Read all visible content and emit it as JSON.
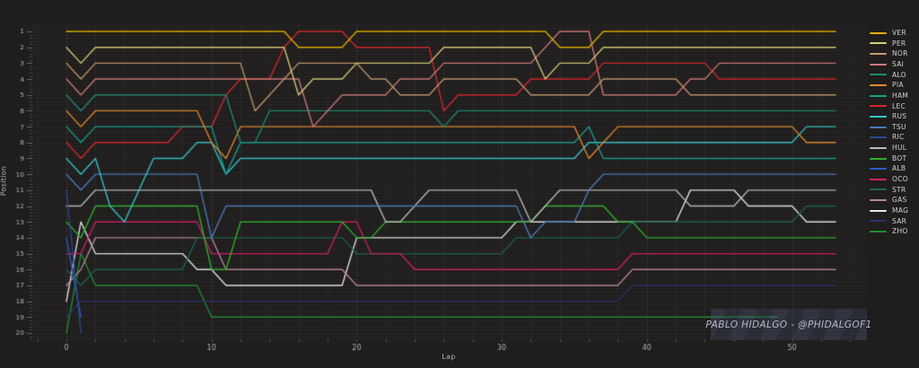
{
  "watermark": {
    "text": "PABLO HIDALGO - @PHIDALGOF1"
  },
  "axes": {
    "x_label": "Lap",
    "y_label": "Position",
    "x_ticks": [
      0,
      10,
      20,
      30,
      40,
      50
    ],
    "y_ticks": [
      1,
      2,
      3,
      4,
      5,
      6,
      7,
      8,
      9,
      10,
      11,
      12,
      13,
      14,
      15,
      16,
      17,
      18,
      19,
      20
    ]
  },
  "chart_data": {
    "type": "line",
    "title": "",
    "xlabel": "Lap",
    "ylabel": "Position",
    "x_ticks": [
      0,
      10,
      20,
      30,
      40,
      50
    ],
    "xlim": [
      -2.35,
      55.2
    ],
    "ylim": [
      20.4,
      0.6
    ],
    "grid": true,
    "legend_position": "right",
    "laps_total": 53,
    "series": [
      {
        "name": "VER",
        "color": "#dfb100",
        "positions": [
          1,
          1,
          1,
          1,
          1,
          1,
          1,
          1,
          1,
          1,
          1,
          1,
          1,
          1,
          1,
          1,
          2,
          2,
          2,
          2,
          1,
          1,
          1,
          1,
          1,
          1,
          1,
          1,
          1,
          1,
          1,
          1,
          1,
          1,
          2,
          2,
          2,
          1,
          1,
          1,
          1,
          1,
          1,
          1,
          1,
          1,
          1,
          1,
          1,
          1,
          1,
          1,
          1,
          1
        ]
      },
      {
        "name": "PER",
        "color": "#d8cc7a",
        "positions": [
          2,
          3,
          2,
          2,
          2,
          2,
          2,
          2,
          2,
          2,
          2,
          2,
          2,
          2,
          2,
          2,
          5,
          4,
          4,
          4,
          3,
          3,
          3,
          3,
          3,
          3,
          2,
          2,
          2,
          2,
          2,
          2,
          2,
          4,
          3,
          3,
          3,
          2,
          2,
          2,
          2,
          2,
          2,
          2,
          2,
          2,
          2,
          2,
          2,
          2,
          2,
          2,
          2,
          2
        ]
      },
      {
        "name": "NOR",
        "color": "#bf9b6c",
        "positions": [
          3,
          4,
          3,
          3,
          3,
          3,
          3,
          3,
          3,
          3,
          3,
          3,
          3,
          6,
          5,
          4,
          3,
          3,
          3,
          3,
          3,
          4,
          4,
          5,
          5,
          5,
          4,
          4,
          4,
          4,
          4,
          4,
          5,
          5,
          5,
          5,
          5,
          4,
          4,
          4,
          4,
          4,
          4,
          5,
          5,
          5,
          5,
          5,
          5,
          5,
          5,
          5,
          5,
          5
        ]
      },
      {
        "name": "SAI",
        "color": "#cc7878",
        "positions": [
          4,
          5,
          4,
          4,
          4,
          4,
          4,
          4,
          4,
          4,
          4,
          4,
          4,
          4,
          4,
          4,
          4,
          7,
          6,
          5,
          5,
          5,
          5,
          4,
          4,
          4,
          3,
          3,
          3,
          3,
          3,
          3,
          3,
          2,
          1,
          1,
          1,
          5,
          5,
          5,
          5,
          5,
          5,
          4,
          4,
          3,
          3,
          3,
          3,
          3,
          3,
          3,
          3,
          3
        ]
      },
      {
        "name": "ALO",
        "color": "#1d8a72",
        "positions": [
          5,
          6,
          5,
          5,
          5,
          5,
          5,
          5,
          5,
          5,
          5,
          5,
          8,
          8,
          6,
          6,
          6,
          6,
          6,
          6,
          6,
          6,
          6,
          6,
          6,
          6,
          7,
          6,
          6,
          6,
          6,
          6,
          6,
          6,
          6,
          6,
          6,
          6,
          6,
          6,
          6,
          6,
          6,
          6,
          6,
          6,
          6,
          6,
          6,
          6,
          6,
          6,
          6,
          6
        ]
      },
      {
        "name": "PIA",
        "color": "#e08a2e",
        "positions": [
          6,
          7,
          6,
          6,
          6,
          6,
          6,
          6,
          6,
          6,
          8,
          9,
          7,
          7,
          7,
          7,
          7,
          7,
          7,
          7,
          7,
          7,
          7,
          7,
          7,
          7,
          7,
          7,
          7,
          7,
          7,
          7,
          7,
          7,
          7,
          7,
          9,
          8,
          7,
          7,
          7,
          7,
          7,
          7,
          7,
          7,
          7,
          7,
          7,
          7,
          7,
          8,
          8,
          8
        ]
      },
      {
        "name": "HAM",
        "color": "#169f8e",
        "positions": [
          7,
          8,
          7,
          7,
          7,
          7,
          7,
          7,
          7,
          7,
          7,
          10,
          8,
          8,
          8,
          8,
          8,
          8,
          8,
          8,
          8,
          8,
          8,
          8,
          8,
          8,
          8,
          8,
          8,
          8,
          8,
          8,
          8,
          8,
          8,
          8,
          7,
          9,
          9,
          9,
          9,
          9,
          9,
          9,
          9,
          9,
          9,
          9,
          9,
          9,
          9,
          9,
          9,
          9
        ]
      },
      {
        "name": "LEC",
        "color": "#d42a2a",
        "positions": [
          8,
          9,
          8,
          8,
          8,
          8,
          8,
          8,
          7,
          7,
          7,
          5,
          4,
          4,
          4,
          2,
          1,
          1,
          1,
          1,
          2,
          2,
          2,
          2,
          2,
          2,
          6,
          5,
          5,
          5,
          5,
          5,
          4,
          4,
          4,
          4,
          4,
          3,
          3,
          3,
          3,
          3,
          3,
          3,
          3,
          4,
          4,
          4,
          4,
          4,
          4,
          4,
          4,
          4
        ]
      },
      {
        "name": "RUS",
        "color": "#36c5c9",
        "positions": [
          9,
          10,
          9,
          12,
          13,
          11,
          9,
          9,
          9,
          8,
          8,
          10,
          9,
          9,
          9,
          9,
          9,
          9,
          9,
          9,
          9,
          9,
          9,
          9,
          9,
          9,
          9,
          9,
          9,
          9,
          9,
          9,
          9,
          9,
          9,
          9,
          8,
          8,
          8,
          8,
          8,
          8,
          8,
          8,
          8,
          8,
          8,
          8,
          8,
          8,
          8,
          7,
          7,
          7
        ]
      },
      {
        "name": "TSU",
        "color": "#4a7dbd",
        "positions": [
          10,
          11,
          10,
          10,
          10,
          10,
          10,
          10,
          10,
          10,
          14,
          12,
          12,
          12,
          12,
          12,
          12,
          12,
          12,
          12,
          12,
          12,
          12,
          12,
          12,
          12,
          12,
          12,
          12,
          12,
          12,
          12,
          14,
          13,
          13,
          13,
          11,
          10,
          10,
          10,
          10,
          10,
          10,
          10,
          10,
          10,
          10,
          10,
          10,
          10,
          10,
          10,
          10,
          10
        ]
      },
      {
        "name": "RIC",
        "color": "#2c4890",
        "positions": [
          11,
          20,
          null,
          null,
          null,
          null,
          null,
          null,
          null,
          null,
          null,
          null,
          null,
          null,
          null,
          null,
          null,
          null,
          null,
          null,
          null,
          null,
          null,
          null,
          null,
          null,
          null,
          null,
          null,
          null,
          null,
          null,
          null,
          null,
          null,
          null,
          null,
          null,
          null,
          null,
          null,
          null,
          null,
          null,
          null,
          null,
          null,
          null,
          null,
          null,
          null,
          null,
          null,
          null
        ]
      },
      {
        "name": "HUL",
        "color": "#b9bdbd",
        "positions": [
          12,
          12,
          11,
          11,
          11,
          11,
          11,
          11,
          11,
          11,
          11,
          11,
          11,
          11,
          11,
          11,
          11,
          11,
          11,
          11,
          11,
          11,
          13,
          13,
          12,
          11,
          11,
          11,
          11,
          11,
          11,
          11,
          13,
          12,
          11,
          11,
          11,
          11,
          11,
          11,
          11,
          11,
          11,
          12,
          12,
          12,
          12,
          11,
          11,
          11,
          11,
          11,
          11,
          11
        ]
      },
      {
        "name": "BOT",
        "color": "#2db32d",
        "positions": [
          13,
          14,
          12,
          12,
          12,
          12,
          12,
          12,
          12,
          12,
          16,
          16,
          13,
          13,
          13,
          13,
          13,
          13,
          13,
          13,
          14,
          14,
          13,
          13,
          13,
          13,
          13,
          13,
          13,
          13,
          13,
          13,
          13,
          12,
          12,
          12,
          12,
          12,
          13,
          13,
          14,
          14,
          14,
          14,
          14,
          14,
          14,
          14,
          14,
          14,
          14,
          14,
          14,
          14
        ]
      },
      {
        "name": "ALB",
        "color": "#2e5cc5",
        "positions": [
          14,
          19,
          null,
          null,
          null,
          null,
          null,
          null,
          null,
          null,
          null,
          null,
          null,
          null,
          null,
          null,
          null,
          null,
          null,
          null,
          null,
          null,
          null,
          null,
          null,
          null,
          null,
          null,
          null,
          null,
          null,
          null,
          null,
          null,
          null,
          null,
          null,
          null,
          null,
          null,
          null,
          null,
          null,
          null,
          null,
          null,
          null,
          null,
          null,
          null,
          null,
          null,
          null,
          null
        ]
      },
      {
        "name": "OCO",
        "color": "#d12068",
        "positions": [
          15,
          15,
          13,
          13,
          13,
          13,
          13,
          13,
          13,
          13,
          15,
          15,
          15,
          15,
          15,
          15,
          15,
          15,
          15,
          13,
          13,
          15,
          15,
          15,
          16,
          16,
          16,
          16,
          16,
          16,
          16,
          16,
          16,
          16,
          16,
          16,
          16,
          16,
          16,
          15,
          15,
          15,
          15,
          15,
          15,
          15,
          15,
          15,
          15,
          15,
          15,
          15,
          15,
          15
        ]
      },
      {
        "name": "STR",
        "color": "#1a6452",
        "positions": [
          16,
          17,
          16,
          16,
          16,
          16,
          16,
          16,
          16,
          14,
          14,
          14,
          14,
          14,
          14,
          14,
          14,
          14,
          14,
          14,
          15,
          15,
          15,
          15,
          15,
          15,
          15,
          15,
          15,
          15,
          15,
          14,
          14,
          14,
          14,
          14,
          14,
          14,
          14,
          13,
          13,
          13,
          13,
          13,
          13,
          13,
          13,
          13,
          13,
          13,
          13,
          12,
          12,
          12
        ]
      },
      {
        "name": "GAS",
        "color": "#b9869b",
        "positions": [
          17,
          16,
          14,
          14,
          14,
          14,
          14,
          14,
          14,
          14,
          14,
          16,
          16,
          16,
          16,
          16,
          16,
          16,
          16,
          16,
          17,
          17,
          17,
          17,
          17,
          17,
          17,
          17,
          17,
          17,
          17,
          17,
          17,
          17,
          17,
          17,
          17,
          17,
          17,
          16,
          16,
          16,
          16,
          16,
          16,
          16,
          16,
          16,
          16,
          16,
          16,
          16,
          16,
          16
        ]
      },
      {
        "name": "MAG",
        "color": "#e6e8e8",
        "positions": [
          18,
          13,
          15,
          15,
          15,
          15,
          15,
          15,
          15,
          16,
          16,
          17,
          17,
          17,
          17,
          17,
          17,
          17,
          17,
          17,
          14,
          14,
          14,
          14,
          14,
          14,
          14,
          14,
          14,
          14,
          14,
          13,
          13,
          13,
          13,
          13,
          13,
          13,
          13,
          13,
          13,
          13,
          13,
          11,
          11,
          11,
          11,
          12,
          12,
          12,
          12,
          13,
          13,
          13
        ]
      },
      {
        "name": "SAR",
        "color": "#25356e",
        "positions": [
          19,
          18,
          18,
          18,
          18,
          18,
          18,
          18,
          18,
          18,
          18,
          18,
          18,
          18,
          18,
          18,
          18,
          18,
          18,
          18,
          18,
          18,
          18,
          18,
          18,
          18,
          18,
          18,
          18,
          18,
          18,
          18,
          18,
          18,
          18,
          18,
          18,
          18,
          18,
          17,
          17,
          17,
          17,
          17,
          17,
          17,
          17,
          17,
          17,
          17,
          17,
          17,
          17,
          17
        ]
      },
      {
        "name": "ZHO",
        "color": "#1f8f35",
        "positions": [
          20,
          15,
          17,
          17,
          17,
          17,
          17,
          17,
          17,
          17,
          19,
          19,
          19,
          19,
          19,
          19,
          19,
          19,
          19,
          19,
          19,
          19,
          19,
          19,
          19,
          19,
          19,
          19,
          19,
          19,
          19,
          19,
          19,
          19,
          19,
          19,
          19,
          19,
          19,
          19,
          19,
          19,
          19,
          19,
          19,
          19,
          19,
          19,
          19,
          19,
          null,
          null,
          null,
          null
        ]
      }
    ]
  }
}
